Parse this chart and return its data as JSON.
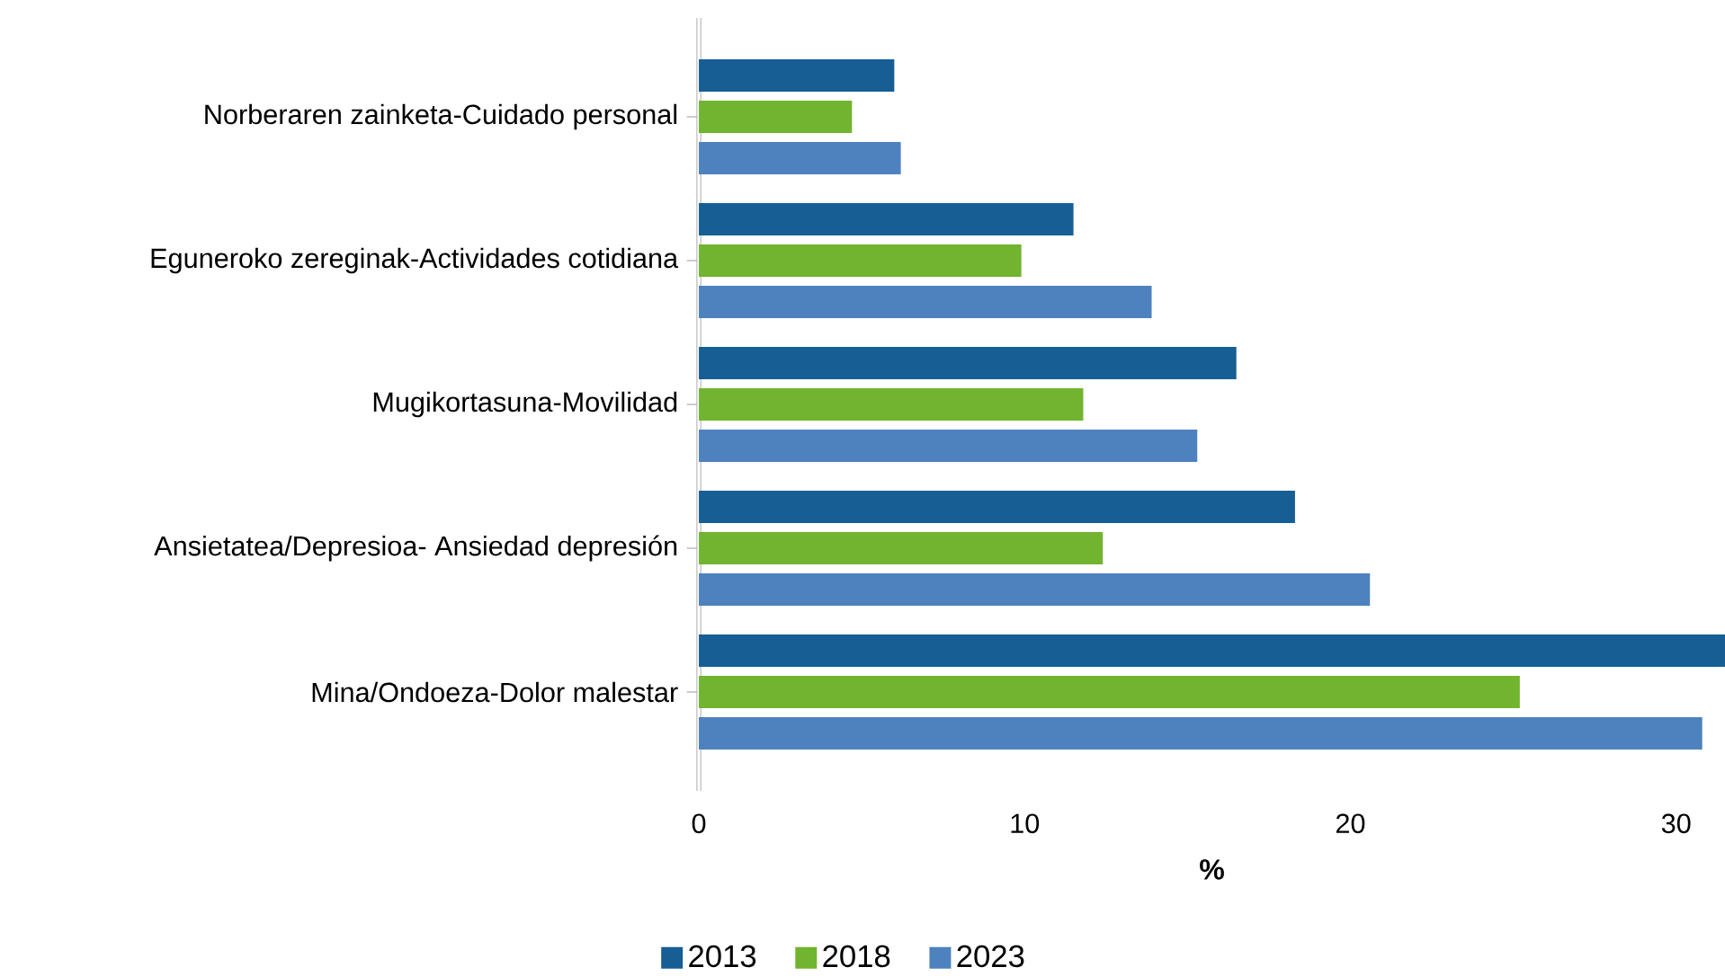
{
  "chart_data": {
    "type": "bar",
    "orientation": "horizontal",
    "xlabel": "%",
    "legend": "bottom",
    "categories": [
      "Norberaren zainketa-Cuidado personal",
      "Eguneroko zereginak-Actividades cotidiana",
      "Mugikortasuna-Movilidad",
      "Ansietatea/Depresioa- Ansiedad depresión",
      "Mina/Ondoeza-Dolor malestar"
    ],
    "xlim": [
      0,
      31.5
    ],
    "xticks": [
      0,
      10,
      20,
      30
    ],
    "series": [
      {
        "name": "2013",
        "color": "#175e94",
        "values": [
          6.0,
          11.5,
          16.5,
          18.3,
          31.5
        ]
      },
      {
        "name": "2018",
        "color": "#71b42f",
        "values": [
          4.7,
          9.9,
          11.8,
          12.4,
          25.2
        ]
      },
      {
        "name": "2023",
        "color": "#4e82be",
        "values": [
          6.2,
          13.9,
          15.3,
          20.6,
          30.8
        ]
      }
    ]
  }
}
